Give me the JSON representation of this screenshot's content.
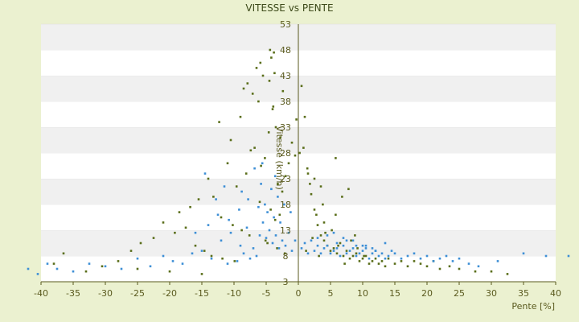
{
  "chart_data": {
    "type": "scatter",
    "title": "VITESSE vs PENTE",
    "xlabel": "Pente [%]",
    "ylabel": "Vitesse (km/h)",
    "xlim": [
      -40,
      40
    ],
    "ylim": [
      3,
      53
    ],
    "x_ticks": [
      "-40",
      "-35",
      "-30",
      "-25",
      "-20",
      "-15",
      "-10",
      "-5",
      "0",
      "5",
      "10",
      "15",
      "20",
      "25",
      "30",
      "35",
      "40"
    ],
    "y_ticks": [
      "3",
      "8",
      "13",
      "18",
      "23",
      "28",
      "33",
      "38",
      "43",
      "48",
      "53"
    ],
    "grid": "alternating horizontal bands",
    "legend": "none",
    "colors": {
      "series_a": "#5a6e1a",
      "series_b": "#3d8fd6",
      "band": "#f0f0f0",
      "axis": "#5a5a1e"
    },
    "series": [
      {
        "color": "#5a6e1a",
        "x": [
          -8.5,
          -6.2,
          -4.5,
          -4.2,
          -3.8,
          -5.5,
          -7.1,
          -9.0,
          -3.5,
          -2.8,
          -4.0,
          -6.8,
          -10.5,
          -12.3,
          -5.2,
          -3.9,
          -11.0,
          -8.1,
          -7.4,
          -5.8,
          -4.6,
          -3.2,
          -2.5,
          -9.6,
          -14.0,
          -13.2,
          -6.0,
          -4.3,
          -2.9,
          -3.6,
          -15.5,
          -16.8,
          -12.0,
          -10.2,
          -8.8,
          -7.6,
          -5.1,
          -4.8,
          -3.3,
          -2.1,
          -18.5,
          -21.0,
          -19.2,
          -22.5,
          -17.5,
          -16.0,
          -14.6,
          -13.5,
          -11.8,
          -9.9,
          -24.5,
          -26.0,
          -28.0,
          -30.5,
          -33.0,
          -36.5,
          -38.0,
          -25.0,
          -20.0,
          -15.0,
          0.5,
          1.0,
          1.5,
          2.0,
          2.5,
          3.0,
          3.5,
          4.0,
          4.5,
          5.0,
          5.5,
          6.0,
          6.5,
          7.0,
          7.5,
          8.0,
          8.5,
          9.0,
          9.5,
          10.0,
          10.5,
          11.0,
          11.5,
          12.0,
          12.5,
          13.0,
          13.5,
          14.0,
          15.0,
          16.0,
          17.0,
          18.0,
          19.0,
          20.0,
          21.0,
          22.0,
          23.5,
          25.0,
          27.5,
          30.0,
          32.5,
          1.2,
          2.2,
          3.2,
          4.2,
          5.2,
          6.2,
          7.2,
          8.2,
          9.2,
          10.2,
          0.8,
          1.8,
          2.8,
          3.8,
          5.8,
          6.8,
          7.8,
          8.8,
          4.0,
          5.8,
          3.5,
          2.5,
          1.4,
          -0.5,
          -1.0,
          -1.5,
          -2.0,
          -0.3,
          0.2,
          -6.5,
          -5.9,
          -4.4,
          -3.7,
          -7.9,
          -2.4
        ],
        "y": [
          40.5,
          38.0,
          42.0,
          46.5,
          47.5,
          43.0,
          39.5,
          35.0,
          33.0,
          31.0,
          36.5,
          29.0,
          30.5,
          34.0,
          27.0,
          37.0,
          26.0,
          24.0,
          28.5,
          25.5,
          32.0,
          22.0,
          20.5,
          21.5,
          23.0,
          19.5,
          18.5,
          17.0,
          16.0,
          15.0,
          19.0,
          17.5,
          15.5,
          14.0,
          13.0,
          12.0,
          11.0,
          10.5,
          9.5,
          8.5,
          16.5,
          14.5,
          12.5,
          11.5,
          13.5,
          10.0,
          9.0,
          8.0,
          7.5,
          7.0,
          10.5,
          9.0,
          7.0,
          6.0,
          5.0,
          8.5,
          6.5,
          5.5,
          5.0,
          4.5,
          41.0,
          35.0,
          24.0,
          20.0,
          17.0,
          14.0,
          12.0,
          11.0,
          10.0,
          9.0,
          9.5,
          8.5,
          10.5,
          8.0,
          9.0,
          7.5,
          8.0,
          8.5,
          7.0,
          7.5,
          8.0,
          6.5,
          7.0,
          7.5,
          6.5,
          7.0,
          6.0,
          7.5,
          6.5,
          7.0,
          6.0,
          7.0,
          6.5,
          6.0,
          7.0,
          5.5,
          6.0,
          5.5,
          5.0,
          5.0,
          4.5,
          9.0,
          11.5,
          8.0,
          12.5,
          13.0,
          10.0,
          6.5,
          11.0,
          9.5,
          8.0,
          29.0,
          22.0,
          16.0,
          18.0,
          27.0,
          19.5,
          21.0,
          12.0,
          14.5,
          16.0,
          21.5,
          23.0,
          25.0,
          27.5,
          30.0,
          26.0,
          23.5,
          34.5,
          28.0,
          44.5,
          45.5,
          48.0,
          43.5,
          41.5,
          40.0
        ]
      },
      {
        "color": "#3d8fd6",
        "x": [
          -12.0,
          -10.5,
          -9.0,
          -8.0,
          -7.0,
          -6.0,
          -5.5,
          -5.0,
          -4.5,
          -4.0,
          -3.5,
          -3.0,
          -2.5,
          -2.0,
          -1.5,
          -1.0,
          -0.5,
          -6.5,
          -7.5,
          -8.5,
          -9.5,
          -11.0,
          -13.5,
          -15.0,
          -16.5,
          -18.0,
          -19.5,
          -21.0,
          -23.0,
          -25.0,
          -27.5,
          -30.0,
          -32.5,
          -35.0,
          -37.5,
          -39.0,
          -40.5,
          -42.0,
          0.5,
          1.0,
          1.5,
          2.0,
          2.5,
          3.0,
          3.5,
          4.0,
          4.5,
          5.0,
          5.5,
          6.0,
          6.5,
          7.0,
          7.5,
          8.0,
          8.5,
          9.0,
          9.5,
          10.0,
          10.5,
          11.0,
          11.5,
          12.0,
          12.5,
          13.0,
          13.5,
          14.0,
          14.5,
          15.0,
          16.0,
          17.0,
          18.0,
          19.0,
          20.0,
          21.0,
          22.0,
          23.0,
          24.0,
          25.0,
          26.5,
          28.0,
          31.0,
          35.0,
          38.5,
          42.0,
          3.0,
          4.5,
          6.0,
          7.5,
          9.0,
          10.5,
          12.0,
          13.5,
          5.5,
          7.0,
          8.5,
          10.0,
          11.5,
          -4.8,
          -5.2,
          -3.8,
          -2.8,
          -6.2,
          -7.8,
          -9.2,
          -10.8,
          -12.5,
          -14.0,
          -8.8,
          -5.8,
          -4.2,
          -3.2,
          -2.2,
          -1.2,
          -14.5,
          -16.0,
          -11.5,
          -12.8,
          -6.8,
          -3.6,
          -5.6
        ],
        "y": [
          11.0,
          12.5,
          10.0,
          13.5,
          9.5,
          12.0,
          14.5,
          11.5,
          13.0,
          10.5,
          12.0,
          9.5,
          11.0,
          10.0,
          12.5,
          9.0,
          11.0,
          8.0,
          7.5,
          8.5,
          7.0,
          6.5,
          7.5,
          9.0,
          8.5,
          6.5,
          7.0,
          8.0,
          6.0,
          7.5,
          5.5,
          6.0,
          6.5,
          5.0,
          5.5,
          6.5,
          4.5,
          5.5,
          9.5,
          10.5,
          8.5,
          11.0,
          9.0,
          10.0,
          8.5,
          9.5,
          10.0,
          8.5,
          9.0,
          9.5,
          8.0,
          10.0,
          8.5,
          9.0,
          9.5,
          8.0,
          8.5,
          9.0,
          10.0,
          7.5,
          8.5,
          9.0,
          8.0,
          8.5,
          7.5,
          8.0,
          9.0,
          8.5,
          7.5,
          8.0,
          8.5,
          7.5,
          8.0,
          7.0,
          7.5,
          8.0,
          7.0,
          7.5,
          6.5,
          6.0,
          7.0,
          8.5,
          8.0,
          8.0,
          11.5,
          12.0,
          10.5,
          11.0,
          10.0,
          9.5,
          9.0,
          10.5,
          12.5,
          11.5,
          11.0,
          10.0,
          9.5,
          16.5,
          18.0,
          15.5,
          14.5,
          17.5,
          19.0,
          17.0,
          15.0,
          16.0,
          14.0,
          20.5,
          22.0,
          21.0,
          19.5,
          18.0,
          16.5,
          24.0,
          12.5,
          21.5,
          19.0,
          25.0,
          23.5,
          26.0
        ]
      }
    ]
  }
}
